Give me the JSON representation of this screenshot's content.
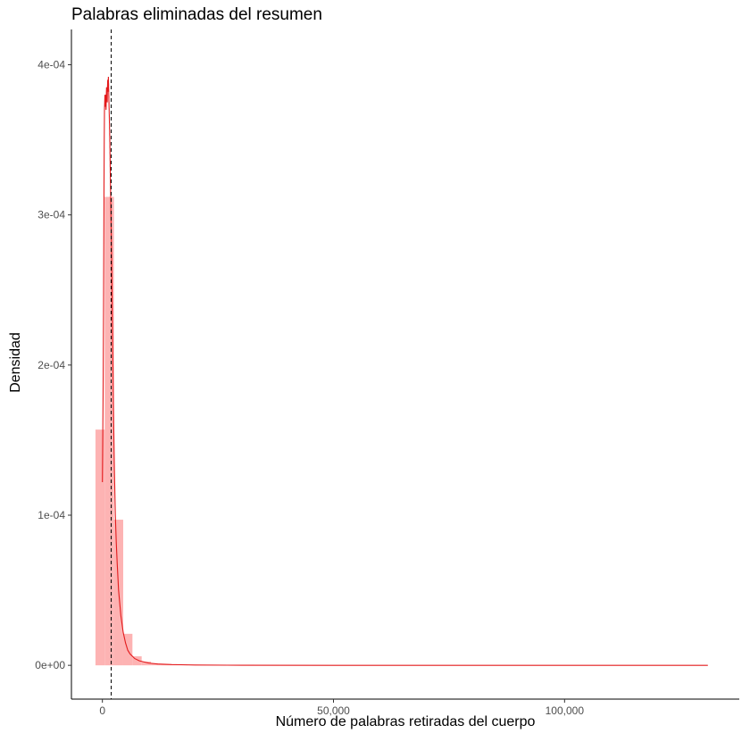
{
  "chart_data": {
    "type": "histogram",
    "title": "Palabras eliminadas del resumen",
    "xlabel": "Número de palabras retiradas del cuerpo",
    "ylabel": "Densidad",
    "xlim": [
      -6700,
      137800
    ],
    "ylim": [
      -2.25e-05,
      0.0004235
    ],
    "x_ticks": [
      {
        "value": 0,
        "label": "0"
      },
      {
        "value": 50000,
        "label": "50,000"
      },
      {
        "value": 100000,
        "label": "100,000"
      }
    ],
    "y_ticks": [
      {
        "value": 0,
        "label": "0e+00"
      },
      {
        "value": 0.0001,
        "label": "1e-04"
      },
      {
        "value": 0.0002,
        "label": "2e-04"
      },
      {
        "value": 0.0003,
        "label": "3e-04"
      },
      {
        "value": 0.0004,
        "label": "4e-04"
      }
    ],
    "histogram": {
      "fill_color": "#fdb3b3",
      "bins": [
        {
          "x0": -1500,
          "x1": 500,
          "density": 0.000157
        },
        {
          "x0": 500,
          "x1": 2500,
          "density": 0.000312
        },
        {
          "x0": 2500,
          "x1": 4500,
          "density": 9.7e-05
        },
        {
          "x0": 4500,
          "x1": 6500,
          "density": 2.1e-05
        },
        {
          "x0": 6500,
          "x1": 8500,
          "density": 6e-06
        },
        {
          "x0": 8500,
          "x1": 10500,
          "density": 2.5e-06
        },
        {
          "x0": 10500,
          "x1": 12500,
          "density": 1.2e-06
        },
        {
          "x0": 12500,
          "x1": 14500,
          "density": 6e-07
        },
        {
          "x0": 14500,
          "x1": 16500,
          "density": 4e-07
        },
        {
          "x0": 16500,
          "x1": 18500,
          "density": 2e-07
        }
      ]
    },
    "density_curve": {
      "color": "#e31a1c",
      "points": [
        [
          0,
          0.000122
        ],
        [
          50,
          0.00014
        ],
        [
          100,
          0.00016
        ],
        [
          150,
          0.00018
        ],
        [
          200,
          0.00021
        ],
        [
          250,
          0.00024
        ],
        [
          300,
          0.00028
        ],
        [
          350,
          0.00032
        ],
        [
          400,
          0.00035
        ],
        [
          450,
          0.00037
        ],
        [
          500,
          0.000375
        ],
        [
          550,
          0.00038
        ],
        [
          600,
          0.000372
        ],
        [
          650,
          0.00038
        ],
        [
          700,
          0.000375
        ],
        [
          750,
          0.000378
        ],
        [
          800,
          0.00037
        ],
        [
          850,
          0.00038
        ],
        [
          900,
          0.000385
        ],
        [
          950,
          0.000378
        ],
        [
          1000,
          0.000382
        ],
        [
          1050,
          0.000375
        ],
        [
          1100,
          0.000385
        ],
        [
          1150,
          0.00039
        ],
        [
          1200,
          0.000382
        ],
        [
          1250,
          0.000388
        ],
        [
          1300,
          0.000392
        ],
        [
          1350,
          0.000386
        ],
        [
          1400,
          0.000378
        ],
        [
          1500,
          0.000365
        ],
        [
          1600,
          0.00035
        ],
        [
          1700,
          0.00033
        ],
        [
          1800,
          0.00031
        ],
        [
          2000,
          0.00027
        ],
        [
          2200,
          0.00022
        ],
        [
          2400,
          0.00017
        ],
        [
          2600,
          0.00013
        ],
        [
          2800,
          0.0001
        ],
        [
          3000,
          8.2e-05
        ],
        [
          3200,
          6.8e-05
        ],
        [
          3500,
          5e-05
        ],
        [
          4000,
          3.3e-05
        ],
        [
          4500,
          2.2e-05
        ],
        [
          5000,
          1.5e-05
        ],
        [
          5500,
          1e-05
        ],
        [
          6000,
          7.5e-06
        ],
        [
          7000,
          4.5e-06
        ],
        [
          8000,
          3e-06
        ],
        [
          10000,
          1.5e-06
        ],
        [
          12000,
          9e-07
        ],
        [
          15000,
          5e-07
        ],
        [
          17000,
          4e-07
        ],
        [
          20000,
          2e-07
        ],
        [
          30000,
          5e-08
        ],
        [
          50000,
          1e-08
        ],
        [
          80000,
          5e-09
        ],
        [
          100000,
          3e-09
        ],
        [
          131000,
          0.0
        ]
      ]
    },
    "reference_line": {
      "x": 1900,
      "style": "dashed",
      "color": "#000000"
    }
  }
}
